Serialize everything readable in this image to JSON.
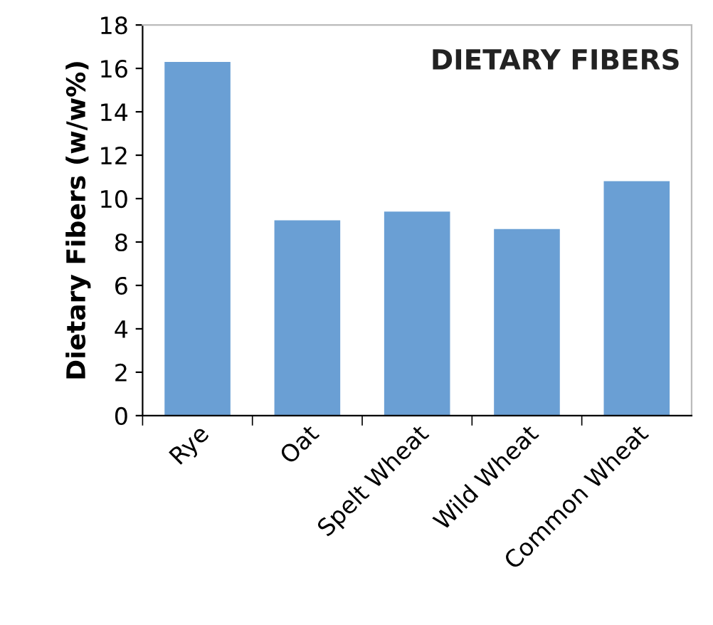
{
  "chart_data": {
    "type": "bar",
    "title": "DIETARY FIBERS",
    "ylabel": "Dietary Fibers (w/w%)",
    "categories": [
      "Rye",
      "Oat",
      "Spelt Wheat",
      "Wild Wheat",
      "Common Wheat"
    ],
    "values": [
      16.3,
      9.0,
      9.4,
      8.6,
      10.8
    ],
    "color": "#6a9fd4",
    "ylim": [
      0,
      18
    ],
    "yticks": [
      0,
      2,
      4,
      6,
      8,
      10,
      12,
      14,
      16,
      18
    ],
    "grid": false
  }
}
